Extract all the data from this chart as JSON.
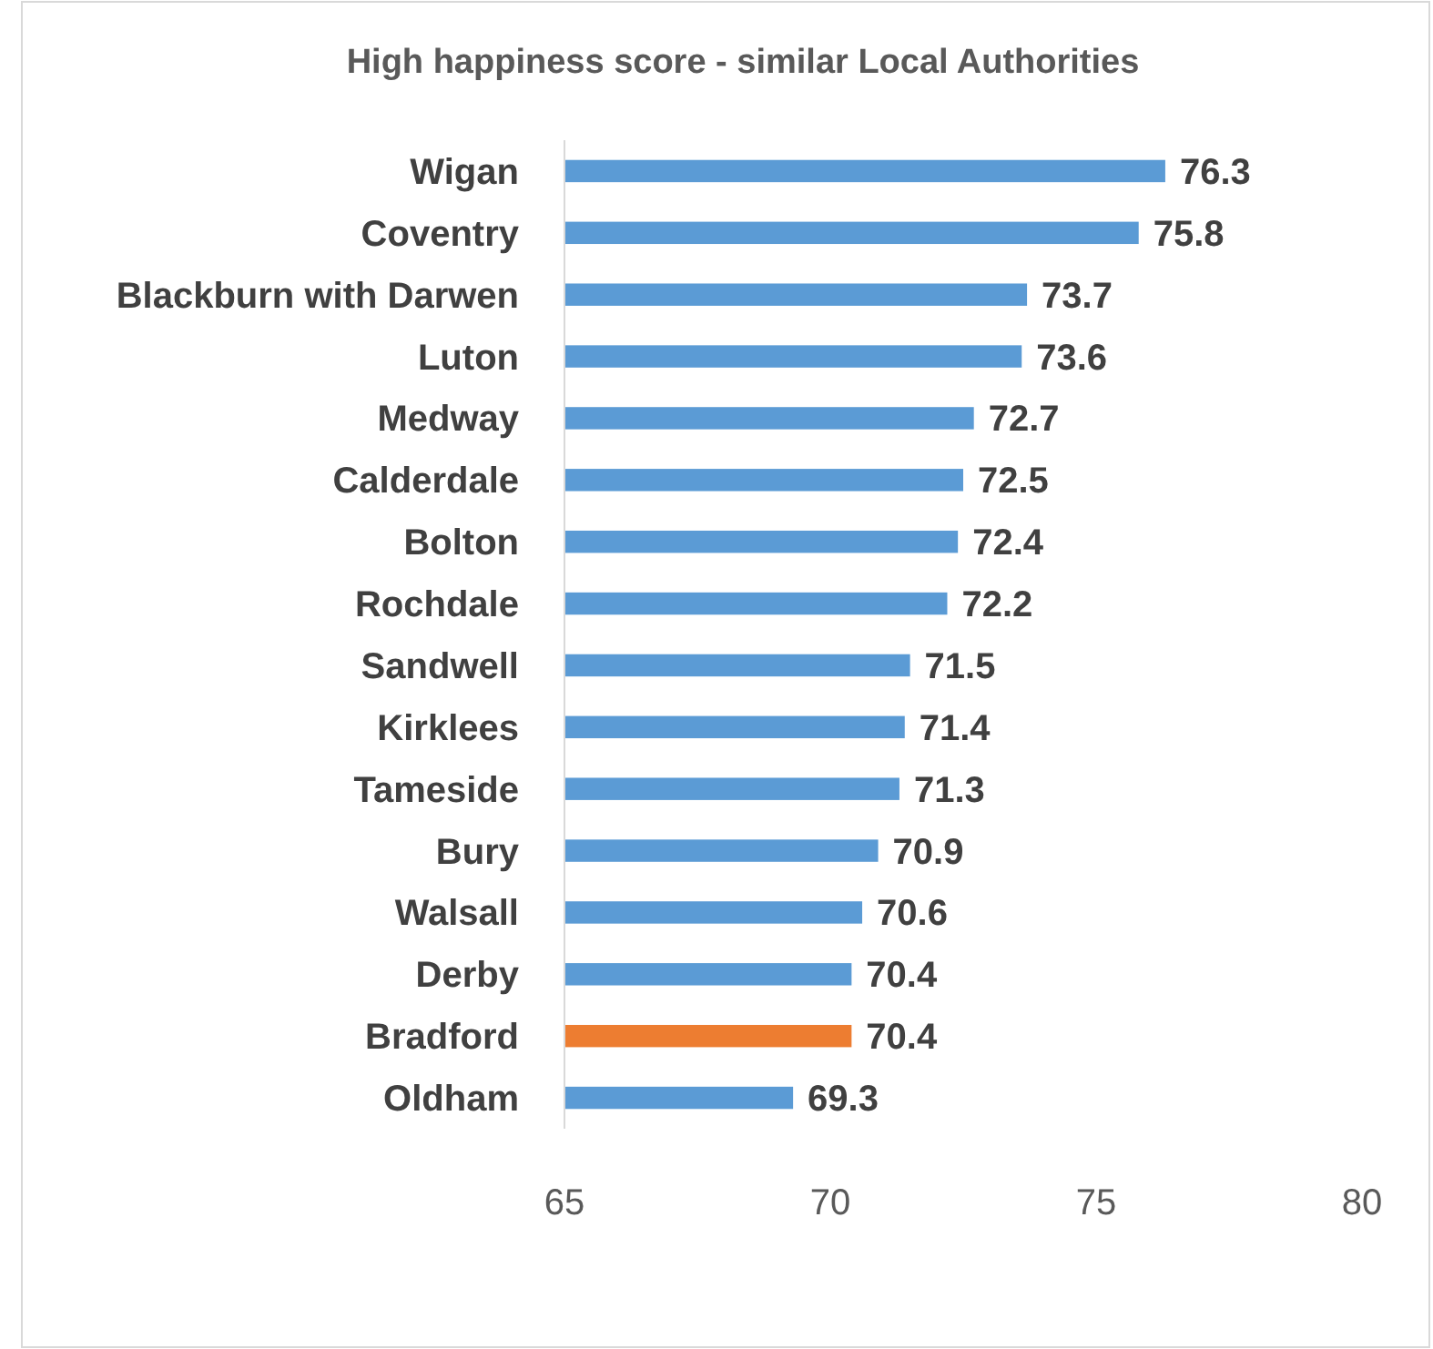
{
  "chart_data": {
    "type": "bar",
    "orientation": "horizontal",
    "title": "High happiness score - similar Local Authorities",
    "categories": [
      "Wigan",
      "Coventry",
      "Blackburn with Darwen",
      "Luton",
      "Medway",
      "Calderdale",
      "Bolton",
      "Rochdale",
      "Sandwell",
      "Kirklees",
      "Tameside",
      "Bury",
      "Walsall",
      "Derby",
      "Bradford",
      "Oldham"
    ],
    "values": [
      76.3,
      75.8,
      73.7,
      73.6,
      72.7,
      72.5,
      72.4,
      72.2,
      71.5,
      71.4,
      71.3,
      70.9,
      70.6,
      70.4,
      70.4,
      69.3
    ],
    "colors": [
      "#5b9bd5",
      "#5b9bd5",
      "#5b9bd5",
      "#5b9bd5",
      "#5b9bd5",
      "#5b9bd5",
      "#5b9bd5",
      "#5b9bd5",
      "#5b9bd5",
      "#5b9bd5",
      "#5b9bd5",
      "#5b9bd5",
      "#5b9bd5",
      "#5b9bd5",
      "#ed7d31",
      "#5b9bd5"
    ],
    "xlim": [
      65,
      80
    ],
    "xticks": [
      65,
      70,
      75,
      80
    ],
    "data_labels": true
  }
}
